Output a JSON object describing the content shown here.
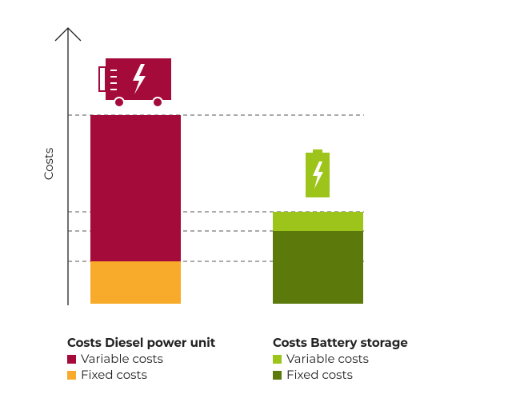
{
  "chart_data": {
    "type": "stacked-bar",
    "y_label": "Costs",
    "ylim": [
      0,
      345
    ],
    "groups": [
      {
        "name": "Costs Diesel power unit",
        "segments": [
          {
            "name": "Variable costs",
            "color": "#a50b3a",
            "value": 183
          },
          {
            "name": "Fixed costs",
            "color": "#f8ab2a",
            "value": 53
          }
        ]
      },
      {
        "name": "Costs Battery storage",
        "segments": [
          {
            "name": "Variable costs",
            "color": "#9dc41a",
            "value": 24
          },
          {
            "name": "Fixed costs",
            "color": "#5b7a0b",
            "value": 91
          }
        ]
      }
    ]
  }
}
